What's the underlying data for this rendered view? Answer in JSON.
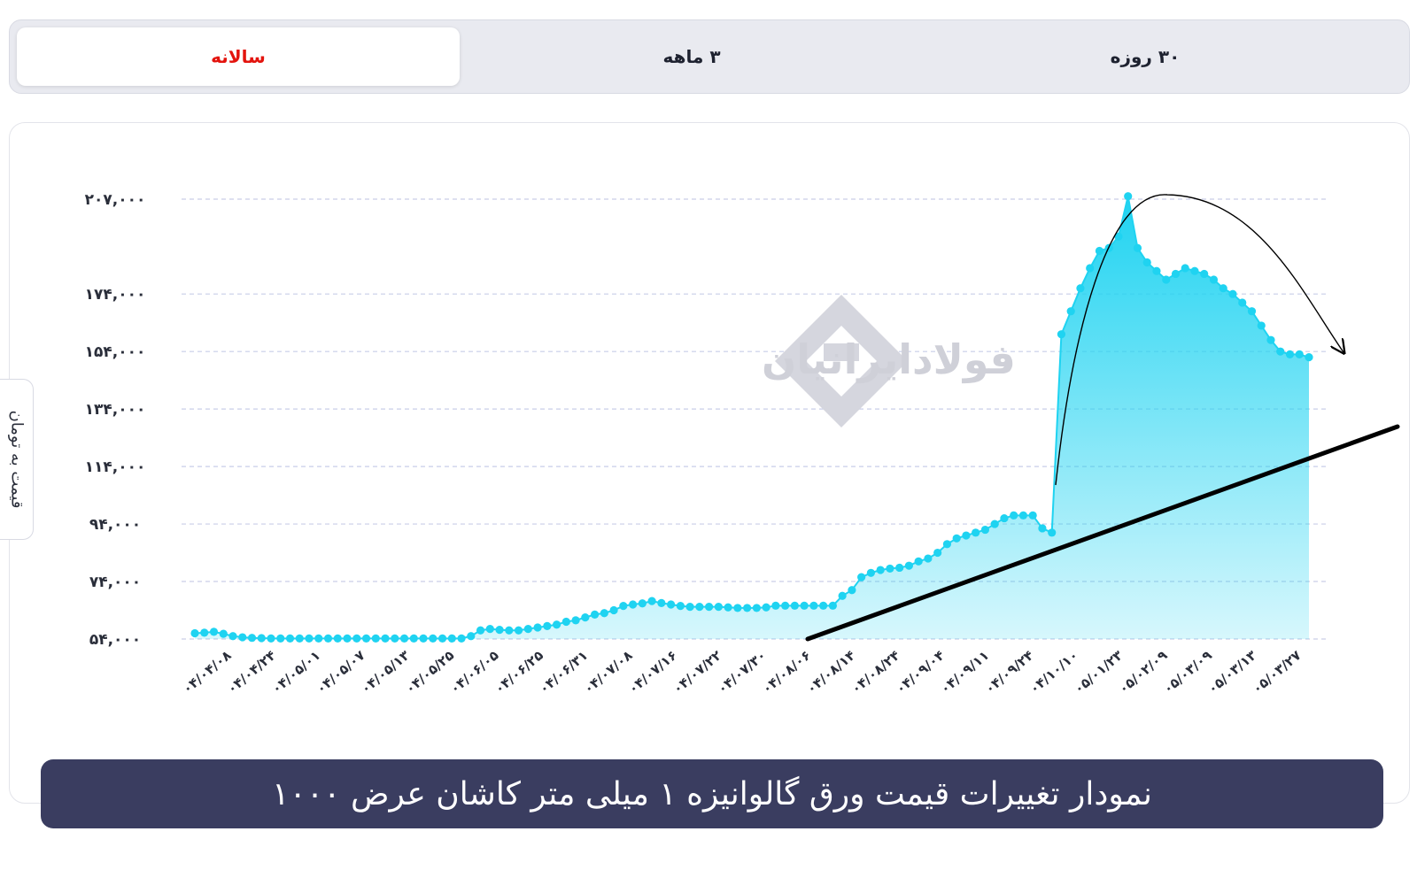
{
  "tabs": [
    {
      "label": "سالانه",
      "active": true
    },
    {
      "label": "۳ ماهه",
      "active": false
    },
    {
      "label": "۳۰ روزه",
      "active": false
    }
  ],
  "watermark": "فولادایرانیان",
  "colors": {
    "accent_red": "#e3140e",
    "line": "#1fd3f1",
    "fill_top": "#1fd3f1",
    "fill_bottom": "#d7f6fc",
    "grid": "#c9cde8",
    "banner": "#3a3d60",
    "trend": "#000000"
  },
  "chart_data": {
    "type": "area",
    "title": "نمودار تغییرات قیمت ورق گالوانیزه ۱ میلی متر کاشان عرض ۱۰۰۰",
    "ylabel": "قیمت به تومان",
    "xlabel": "",
    "ylim": [
      54000,
      207000
    ],
    "grid": true,
    "yticks": [
      54000,
      74000,
      94000,
      114000,
      134000,
      154000,
      174000,
      207000
    ],
    "ytick_labels": [
      "۵۴,۰۰۰",
      "۷۴,۰۰۰",
      "۹۴,۰۰۰",
      "۱۱۴,۰۰۰",
      "۱۳۴,۰۰۰",
      "۱۵۴,۰۰۰",
      "۱۷۴,۰۰۰",
      "۲۰۷,۰۰۰"
    ],
    "xtick_labels": [
      "۰۴/۰۴/۰۸",
      "۰۴/۰۴/۲۴",
      "۰۴/۰۵/۰۱",
      "۰۴/۰۵/۰۷",
      "۰۴/۰۵/۱۳",
      "۰۴/۰۵/۲۵",
      "۰۴/۰۶/۰۵",
      "۰۴/۰۶/۲۵",
      "۰۴/۰۶/۳۱",
      "۰۴/۰۷/۰۸",
      "۰۴/۰۷/۱۶",
      "۰۴/۰۷/۲۲",
      "۰۴/۰۷/۳۰",
      "۰۴/۰۸/۰۶",
      "۰۴/۰۸/۱۴",
      "۰۴/۰۸/۲۴",
      "۰۴/۰۹/۰۴",
      "۰۴/۰۹/۱۱",
      "۰۴/۰۹/۲۴",
      "۰۴/۱۰/۱۰",
      "۰۵/۰۱/۲۳",
      "۰۵/۰۲/۰۹",
      "۰۵/۰۳/۰۹",
      "۰۵/۰۳/۱۳",
      "۰۵/۰۳/۲۷"
    ],
    "series": [
      {
        "values": [
          56000,
          56200,
          56500,
          55800,
          55000,
          54600,
          54400,
          54300,
          54200,
          54200,
          54200,
          54200,
          54200,
          54200,
          54200,
          54200,
          54200,
          54200,
          54200,
          54200,
          54200,
          54200,
          54200,
          54200,
          54200,
          54200,
          54200,
          54200,
          54200,
          55000,
          57000,
          57500,
          57200,
          57000,
          57000,
          57500,
          58000,
          58500,
          59000,
          60000,
          60500,
          61500,
          62500,
          63000,
          64000,
          65500,
          66000,
          66400,
          67200,
          66500,
          66000,
          65500,
          65200,
          65200,
          65200,
          65200,
          65000,
          64800,
          64800,
          64800,
          65000,
          65600,
          65600,
          65600,
          65600,
          65600,
          65600,
          65600,
          69000,
          71000,
          75500,
          77000,
          78000,
          78500,
          78800,
          79500,
          81000,
          82000,
          84000,
          87000,
          89000,
          90000,
          91000,
          92000,
          94000,
          96000,
          97000,
          97000,
          97000,
          92500,
          91000,
          160000,
          168000,
          176000,
          183000,
          189000,
          190000,
          194000,
          208000,
          190000,
          185000,
          182000,
          179000,
          181000,
          183000,
          182000,
          181000,
          179000,
          176000,
          174000,
          171000,
          168000,
          163000,
          158000,
          154000,
          153000,
          153000,
          152000
        ]
      }
    ],
    "annotations": [
      "trend line",
      "peak arc arrow"
    ]
  }
}
